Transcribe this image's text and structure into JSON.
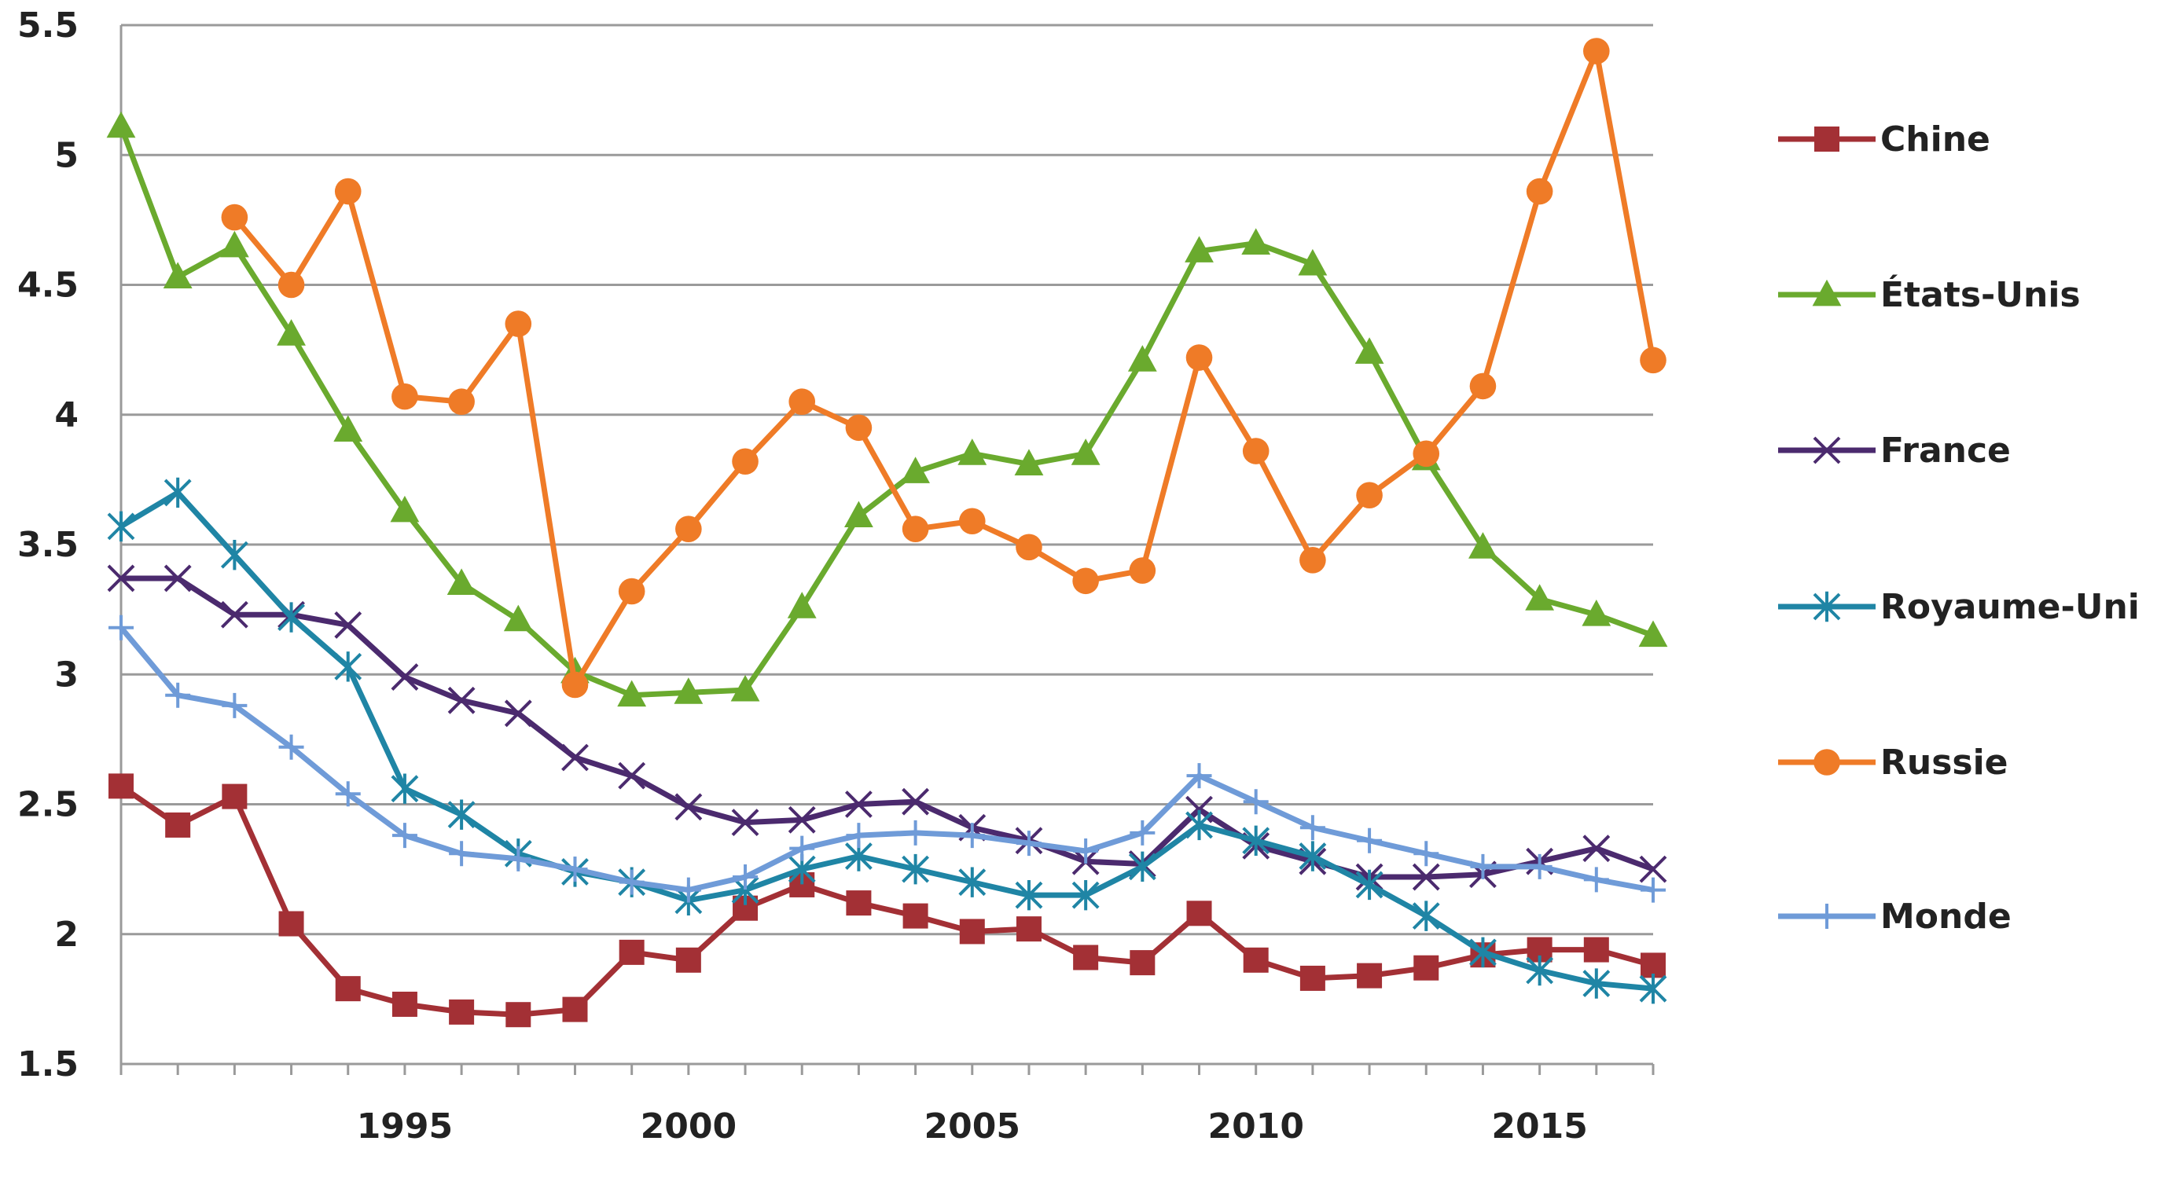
{
  "chart_data": {
    "type": "line",
    "title": "",
    "xlabel": "",
    "ylabel": "",
    "xlim": [
      1990,
      2017
    ],
    "ylim": [
      1.5,
      5.5
    ],
    "yticks": [
      "1.5",
      "2",
      "2.5",
      "3",
      "3.5",
      "4",
      "4.5",
      "5",
      "5.5"
    ],
    "xticks": [
      "1995",
      "2000",
      "2005",
      "2010",
      "2015"
    ],
    "grid": "horizontal",
    "legend_position": "right",
    "x": [
      1990,
      1991,
      1992,
      1993,
      1994,
      1995,
      1996,
      1997,
      1998,
      1999,
      2000,
      2001,
      2002,
      2003,
      2004,
      2005,
      2006,
      2007,
      2008,
      2009,
      2010,
      2011,
      2012,
      2013,
      2014,
      2015,
      2016,
      2017
    ],
    "series": [
      {
        "name": "Chine",
        "color": "#a33035",
        "marker": "square",
        "values": [
          2.57,
          2.42,
          2.53,
          2.04,
          1.79,
          1.73,
          1.7,
          1.69,
          1.71,
          1.93,
          1.9,
          2.1,
          2.19,
          2.12,
          2.07,
          2.01,
          2.02,
          1.91,
          1.89,
          2.08,
          1.9,
          1.83,
          1.84,
          1.87,
          1.92,
          1.94,
          1.94,
          1.88
        ]
      },
      {
        "name": "États-Unis",
        "color": "#6aaa2e",
        "marker": "triangle",
        "values": [
          5.11,
          4.53,
          4.65,
          4.31,
          3.94,
          3.63,
          3.35,
          3.21,
          3.01,
          2.92,
          2.93,
          2.94,
          3.26,
          3.61,
          3.78,
          3.85,
          3.81,
          3.85,
          4.21,
          4.63,
          4.66,
          4.58,
          4.24,
          3.83,
          3.49,
          3.29,
          3.23,
          3.15
        ]
      },
      {
        "name": "France",
        "color": "#4b2a6e",
        "marker": "x",
        "values": [
          3.37,
          3.37,
          3.23,
          3.23,
          3.19,
          2.99,
          2.9,
          2.85,
          2.68,
          2.61,
          2.49,
          2.43,
          2.44,
          2.5,
          2.51,
          2.41,
          2.36,
          2.28,
          2.27,
          2.48,
          2.34,
          2.28,
          2.22,
          2.22,
          2.23,
          2.28,
          2.33,
          2.25
        ]
      },
      {
        "name": "Royaume-Uni",
        "color": "#1f85a5",
        "marker": "asterisk",
        "values": [
          3.57,
          3.7,
          3.46,
          3.22,
          3.03,
          2.56,
          2.46,
          2.31,
          2.24,
          2.2,
          2.13,
          2.17,
          2.25,
          2.3,
          2.25,
          2.2,
          2.15,
          2.15,
          2.26,
          2.42,
          2.36,
          2.3,
          2.19,
          2.07,
          1.93,
          1.86,
          1.81,
          1.79
        ]
      },
      {
        "name": "Russie",
        "color": "#ef7b27",
        "marker": "circle",
        "values": [
          null,
          null,
          4.76,
          4.5,
          4.86,
          4.07,
          4.05,
          4.35,
          2.96,
          3.32,
          3.56,
          3.82,
          4.05,
          3.95,
          3.56,
          3.59,
          3.49,
          3.36,
          3.4,
          4.22,
          3.86,
          3.44,
          3.69,
          3.85,
          4.11,
          4.86,
          5.4,
          4.21
        ]
      },
      {
        "name": "Monde",
        "color": "#6f9bd8",
        "marker": "plus",
        "values": [
          3.18,
          2.92,
          2.88,
          2.72,
          2.54,
          2.38,
          2.31,
          2.29,
          2.25,
          2.2,
          2.17,
          2.22,
          2.33,
          2.38,
          2.39,
          2.38,
          2.35,
          2.32,
          2.39,
          2.61,
          2.51,
          2.41,
          2.36,
          2.31,
          2.26,
          2.26,
          2.21,
          2.17
        ]
      }
    ]
  }
}
